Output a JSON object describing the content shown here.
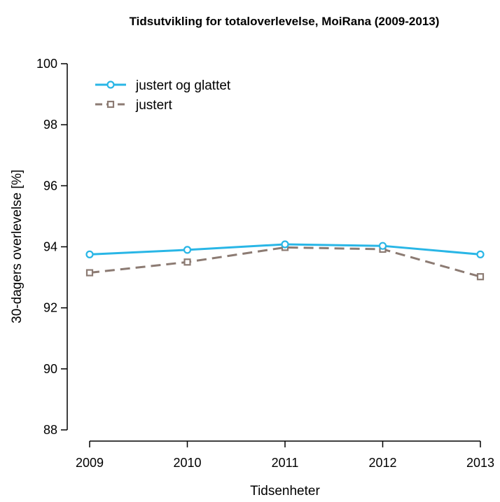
{
  "chart_data": {
    "type": "line",
    "title": "Tidsutvikling for totaloverlevelse, MoiRana (2009-2013)",
    "xlabel": "Tidsenheter",
    "ylabel": "30-dagers overlevelse [%]",
    "categories": [
      "2009",
      "2010",
      "2011",
      "2012",
      "2013"
    ],
    "ylim": [
      88,
      100
    ],
    "yticks": [
      "88",
      "90",
      "92",
      "94",
      "96",
      "98",
      "100"
    ],
    "grid": false,
    "legend_position": "top-left",
    "series": [
      {
        "name": "justert og glattet",
        "values": [
          93.75,
          93.9,
          94.08,
          94.03,
          93.75
        ],
        "color": "#29b6e6",
        "line_style": "solid",
        "marker": "circle"
      },
      {
        "name": "justert",
        "values": [
          93.15,
          93.5,
          93.98,
          93.92,
          93.02
        ],
        "color": "#8c7b73",
        "line_style": "dashed",
        "marker": "square"
      }
    ]
  }
}
